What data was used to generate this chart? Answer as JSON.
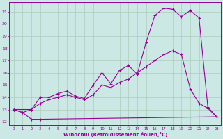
{
  "xlabel": "Windchill (Refroidissement éolien,°C)",
  "bg_color": "#cce8e4",
  "grid_color": "#aaccbb",
  "line_color": "#990099",
  "xlim": [
    -0.5,
    23.5
  ],
  "ylim": [
    11.7,
    21.8
  ],
  "yticks": [
    12,
    13,
    14,
    15,
    16,
    17,
    18,
    19,
    20,
    21
  ],
  "xticks": [
    0,
    1,
    2,
    3,
    4,
    5,
    6,
    7,
    8,
    9,
    10,
    11,
    12,
    13,
    14,
    15,
    16,
    17,
    18,
    19,
    20,
    21,
    22,
    23
  ],
  "line1_x": [
    0,
    1,
    2,
    3,
    23
  ],
  "line1_y": [
    13.0,
    12.75,
    12.2,
    12.2,
    12.4
  ],
  "line2_x": [
    0,
    1,
    2,
    3,
    4,
    5,
    6,
    7,
    8,
    9,
    10,
    11,
    12,
    13,
    14,
    15,
    16,
    17,
    18,
    19,
    20,
    21,
    22,
    23
  ],
  "line2_y": [
    13.0,
    12.75,
    13.0,
    13.5,
    13.8,
    14.0,
    14.2,
    14.0,
    13.8,
    14.2,
    15.0,
    14.8,
    15.2,
    15.5,
    16.0,
    16.5,
    17.0,
    17.5,
    17.8,
    17.5,
    14.7,
    13.5,
    13.1,
    12.4
  ],
  "line3_x": [
    0,
    2,
    3,
    4,
    5,
    6,
    7,
    8,
    9,
    10,
    11,
    12,
    13,
    14,
    15,
    16,
    17,
    18,
    19,
    20,
    21,
    22,
    23
  ],
  "line3_y": [
    13.0,
    13.0,
    14.0,
    14.0,
    14.3,
    14.5,
    14.1,
    13.9,
    15.0,
    16.0,
    15.1,
    16.2,
    16.6,
    15.9,
    18.5,
    20.7,
    21.3,
    21.2,
    20.6,
    21.1,
    20.5,
    13.2,
    12.4
  ]
}
